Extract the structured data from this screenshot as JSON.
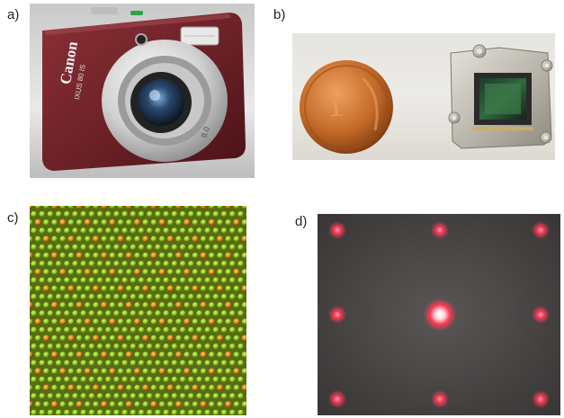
{
  "labels": {
    "a": "a)",
    "b": "b)",
    "c": "c)",
    "d": "d)"
  },
  "camera": {
    "brand": "Canon",
    "model": "IXUS 80 IS"
  },
  "coin": {
    "value": "1"
  },
  "colors": {
    "camera_body": "#6e2228",
    "lattice_green": "#8fcf2a",
    "lattice_orange": "#d88a1a",
    "laser_red": "#ff3a55",
    "screen_bg": "#4a4848"
  }
}
